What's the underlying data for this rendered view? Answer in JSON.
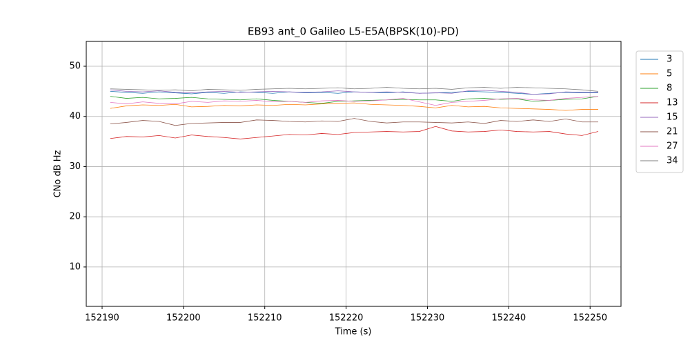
{
  "chart_data": {
    "type": "line",
    "title": "EB93 ant_0 Galileo L5-E5A(BPSK(10)-PD)",
    "x_label": "Time (s)",
    "y_label": "CNo dB Hz",
    "x": [
      152191,
      152193,
      152195,
      152197,
      152199,
      152201,
      152203,
      152205,
      152207,
      152209,
      152211,
      152213,
      152215,
      152217,
      152219,
      152221,
      152223,
      152225,
      152227,
      152229,
      152231,
      152233,
      152235,
      152237,
      152239,
      152241,
      152243,
      152245,
      152247,
      152249,
      152251
    ],
    "series": [
      {
        "name": "3",
        "color": "#1f77b4",
        "values": [
          45.0,
          44.8,
          44.6,
          44.9,
          44.7,
          44.5,
          44.8,
          44.6,
          44.9,
          44.8,
          44.6,
          44.9,
          44.7,
          44.8,
          44.6,
          44.9,
          44.8,
          44.7,
          44.9,
          44.6,
          44.7,
          44.8,
          45.0,
          44.9,
          44.8,
          44.6,
          44.4,
          44.6,
          44.8,
          44.7,
          44.7
        ]
      },
      {
        "name": "5",
        "color": "#ff7f0e",
        "values": [
          41.6,
          42.1,
          42.3,
          42.2,
          42.4,
          41.9,
          42.0,
          42.2,
          42.1,
          42.3,
          42.2,
          42.4,
          42.3,
          42.5,
          42.6,
          42.7,
          42.4,
          42.3,
          42.2,
          42.0,
          41.7,
          42.2,
          41.9,
          42.0,
          41.7,
          41.6,
          41.5,
          41.4,
          41.2,
          41.4,
          41.4
        ]
      },
      {
        "name": "8",
        "color": "#2ca02c",
        "values": [
          44.0,
          43.6,
          43.8,
          43.5,
          43.6,
          43.8,
          43.5,
          43.4,
          43.3,
          43.5,
          43.2,
          43.0,
          42.8,
          42.6,
          43.0,
          43.1,
          43.2,
          43.3,
          43.4,
          43.3,
          43.3,
          43.0,
          43.5,
          43.6,
          43.4,
          43.5,
          43.0,
          43.2,
          43.4,
          43.5,
          44.0
        ]
      },
      {
        "name": "13",
        "color": "#d62728",
        "values": [
          35.6,
          36.0,
          35.9,
          36.2,
          35.7,
          36.3,
          36.0,
          35.8,
          35.5,
          35.8,
          36.1,
          36.4,
          36.3,
          36.6,
          36.4,
          36.8,
          36.9,
          37.0,
          36.9,
          37.0,
          38.0,
          37.1,
          36.9,
          37.0,
          37.3,
          37.0,
          36.9,
          37.0,
          36.5,
          36.2,
          37.0
        ]
      },
      {
        "name": "15",
        "color": "#9467bd",
        "values": [
          45.3,
          45.0,
          44.9,
          45.1,
          44.8,
          44.7,
          44.9,
          45.0,
          44.8,
          44.9,
          45.0,
          44.9,
          44.8,
          44.9,
          45.1,
          44.9,
          44.8,
          44.9,
          44.8,
          44.6,
          44.7,
          44.6,
          45.1,
          45.2,
          45.0,
          44.8,
          44.4,
          44.5,
          44.9,
          44.8,
          44.8
        ]
      },
      {
        "name": "21",
        "color": "#8c564b",
        "values": [
          38.5,
          38.8,
          39.2,
          39.0,
          38.2,
          38.6,
          38.7,
          38.8,
          38.8,
          39.3,
          39.2,
          39.0,
          38.9,
          39.1,
          39.0,
          39.6,
          39.0,
          38.7,
          38.9,
          38.9,
          38.8,
          38.7,
          38.9,
          38.6,
          39.2,
          39.0,
          39.3,
          39.0,
          39.5,
          38.9,
          38.9
        ]
      },
      {
        "name": "27",
        "color": "#e377c2",
        "values": [
          42.8,
          42.5,
          42.9,
          42.6,
          42.5,
          43.0,
          42.8,
          43.1,
          43.0,
          43.2,
          42.9,
          43.0,
          42.8,
          43.1,
          43.2,
          43.0,
          43.1,
          43.3,
          43.6,
          42.9,
          42.2,
          42.8,
          43.0,
          43.2,
          43.5,
          43.6,
          43.3,
          43.2,
          43.6,
          43.8,
          44.0
        ]
      },
      {
        "name": "34",
        "color": "#7f7f7f",
        "values": [
          45.5,
          45.4,
          45.3,
          45.2,
          45.3,
          45.1,
          45.4,
          45.3,
          45.2,
          45.4,
          45.5,
          45.6,
          45.5,
          45.6,
          45.7,
          45.5,
          45.6,
          45.8,
          45.6,
          45.5,
          45.6,
          45.4,
          45.7,
          45.8,
          45.6,
          45.8,
          45.7,
          45.6,
          45.5,
          45.3,
          45.0
        ]
      }
    ],
    "xlim": [
      152188.05,
      152253.8
    ],
    "xticks": [
      152190,
      152200,
      152210,
      152220,
      152230,
      152240,
      152250
    ],
    "ylim": [
      2.15,
      54.95
    ],
    "yticks": [
      10,
      20,
      30,
      40,
      50
    ],
    "grid": true,
    "legend_loc": "outside right"
  }
}
